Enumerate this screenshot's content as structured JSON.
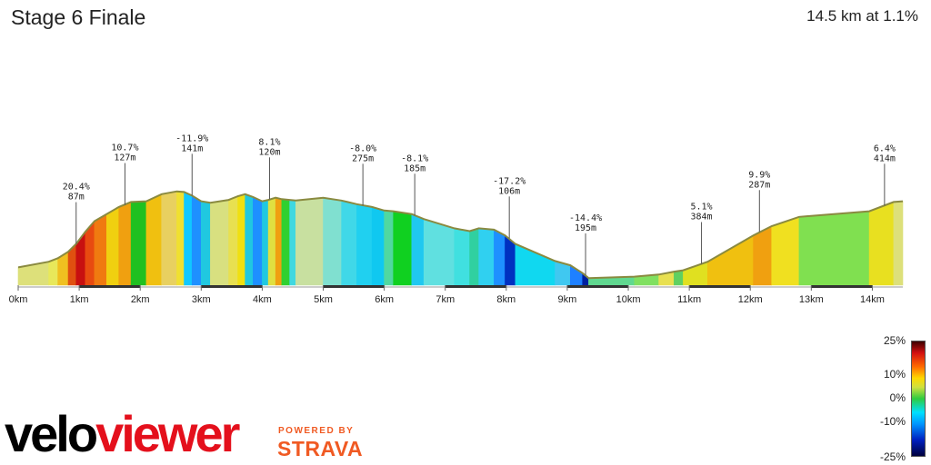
{
  "header": {
    "title": "Stage 6 Finale",
    "summary": "14.5 km at 1.1%"
  },
  "branding": {
    "logo_part1": "velo",
    "logo_part2": "viewer",
    "powered_by": "POWERED BY",
    "partner": "STRAVA"
  },
  "legend": {
    "labels": [
      "25%",
      "10%",
      "0%",
      "-10%",
      "-25%"
    ]
  },
  "chart_data": {
    "type": "area",
    "title": "Stage 6 Finale",
    "subtitle": "14.5 km at 1.1%",
    "x_unit": "km",
    "xlim": [
      0,
      14.5
    ],
    "x_ticks": [
      {
        "km": 0,
        "label": "0km"
      },
      {
        "km": 1,
        "label": "1km"
      },
      {
        "km": 2,
        "label": "2km"
      },
      {
        "km": 3,
        "label": "3km"
      },
      {
        "km": 4,
        "label": "4km"
      },
      {
        "km": 5,
        "label": "5km"
      },
      {
        "km": 6,
        "label": "6km"
      },
      {
        "km": 7,
        "label": "7km"
      },
      {
        "km": 8,
        "label": "8km"
      },
      {
        "km": 9,
        "label": "9km"
      },
      {
        "km": 10,
        "label": "10km"
      },
      {
        "km": 11,
        "label": "11km"
      },
      {
        "km": 12,
        "label": "12km"
      },
      {
        "km": 13,
        "label": "13km"
      },
      {
        "km": 14,
        "label": "14km"
      }
    ],
    "ylim": [
      80,
      430
    ],
    "profile": [
      {
        "km": 0.0,
        "elev": 105,
        "color": "#dde07a"
      },
      {
        "km": 0.5,
        "elev": 113,
        "color": "#e8e85a"
      },
      {
        "km": 0.65,
        "elev": 118,
        "color": "#f0c020"
      },
      {
        "km": 0.82,
        "elev": 127,
        "color": "#e05010"
      },
      {
        "km": 0.95,
        "elev": 138,
        "color": "#c81010"
      },
      {
        "km": 1.1,
        "elev": 155,
        "color": "#e84a10"
      },
      {
        "km": 1.25,
        "elev": 170,
        "color": "#f07a10"
      },
      {
        "km": 1.45,
        "elev": 180,
        "color": "#f0d010"
      },
      {
        "km": 1.65,
        "elev": 190,
        "color": "#f0a010"
      },
      {
        "km": 1.85,
        "elev": 197,
        "color": "#20c020"
      },
      {
        "km": 2.1,
        "elev": 198,
        "color": "#f0c010"
      },
      {
        "km": 2.35,
        "elev": 208,
        "color": "#e8d060"
      },
      {
        "km": 2.6,
        "elev": 212,
        "color": "#f0e030"
      },
      {
        "km": 2.72,
        "elev": 211,
        "color": "#10c8ff"
      },
      {
        "km": 2.85,
        "elev": 206,
        "color": "#1e90ff"
      },
      {
        "km": 3.0,
        "elev": 198,
        "color": "#20c8e0"
      },
      {
        "km": 3.15,
        "elev": 196,
        "color": "#d8e080"
      },
      {
        "km": 3.45,
        "elev": 200,
        "color": "#e8e050"
      },
      {
        "km": 3.6,
        "elev": 205,
        "color": "#f0e010"
      },
      {
        "km": 3.72,
        "elev": 208,
        "color": "#20c8e0"
      },
      {
        "km": 3.85,
        "elev": 204,
        "color": "#1e90ff"
      },
      {
        "km": 4.0,
        "elev": 198,
        "color": "#20c8e0"
      },
      {
        "km": 4.1,
        "elev": 200,
        "color": "#e0e040"
      },
      {
        "km": 4.22,
        "elev": 203,
        "color": "#f0a010"
      },
      {
        "km": 4.32,
        "elev": 201,
        "color": "#30d030"
      },
      {
        "km": 4.45,
        "elev": 200,
        "color": "#40d8e0"
      },
      {
        "km": 4.55,
        "elev": 199,
        "color": "#c8e0a0"
      },
      {
        "km": 5.0,
        "elev": 203,
        "color": "#80e0d0"
      },
      {
        "km": 5.3,
        "elev": 199,
        "color": "#40d8e8"
      },
      {
        "km": 5.55,
        "elev": 194,
        "color": "#20d0f0"
      },
      {
        "km": 5.8,
        "elev": 190,
        "color": "#10c8f0"
      },
      {
        "km": 6.0,
        "elev": 185,
        "color": "#50d8a0"
      },
      {
        "km": 6.15,
        "elev": 184,
        "color": "#10d020"
      },
      {
        "km": 6.45,
        "elev": 180,
        "color": "#20c8f0"
      },
      {
        "km": 6.65,
        "elev": 173,
        "color": "#60e0e0"
      },
      {
        "km": 7.15,
        "elev": 160,
        "color": "#40e0e0"
      },
      {
        "km": 7.4,
        "elev": 156,
        "color": "#30d0a0"
      },
      {
        "km": 7.55,
        "elev": 160,
        "color": "#30d0f0"
      },
      {
        "km": 7.8,
        "elev": 158,
        "color": "#1e90ff"
      },
      {
        "km": 7.98,
        "elev": 150,
        "color": "#0030c0"
      },
      {
        "km": 8.15,
        "elev": 138,
        "color": "#10d8f0"
      },
      {
        "km": 8.8,
        "elev": 114,
        "color": "#40c8f0"
      },
      {
        "km": 9.05,
        "elev": 108,
        "color": "#1e80ff"
      },
      {
        "km": 9.25,
        "elev": 97,
        "color": "#0020a0"
      },
      {
        "km": 9.35,
        "elev": 90,
        "color": "#60d890"
      },
      {
        "km": 10.1,
        "elev": 92,
        "color": "#80e060"
      },
      {
        "km": 10.5,
        "elev": 95,
        "color": "#e8e050"
      },
      {
        "km": 10.75,
        "elev": 99,
        "color": "#60d060"
      },
      {
        "km": 10.9,
        "elev": 101,
        "color": "#e0e020"
      },
      {
        "km": 11.3,
        "elev": 113,
        "color": "#f0c010"
      },
      {
        "km": 12.05,
        "elev": 150,
        "color": "#f0a010"
      },
      {
        "km": 12.35,
        "elev": 163,
        "color": "#f0e020"
      },
      {
        "km": 12.8,
        "elev": 176,
        "color": "#80e050"
      },
      {
        "km": 13.95,
        "elev": 184,
        "color": "#e8e020"
      },
      {
        "km": 14.35,
        "elev": 197,
        "color": "#dde07a"
      },
      {
        "km": 14.5,
        "elev": 198,
        "color": null
      }
    ],
    "annotations": [
      {
        "km": 0.95,
        "elev": 138,
        "grade": "20.4%",
        "alt": "87m"
      },
      {
        "km": 1.75,
        "elev": 193,
        "grade": "10.7%",
        "alt": "127m"
      },
      {
        "km": 2.85,
        "elev": 206,
        "grade": "-11.9%",
        "alt": "141m"
      },
      {
        "km": 4.12,
        "elev": 201,
        "grade": "8.1%",
        "alt": "120m"
      },
      {
        "km": 5.65,
        "elev": 192,
        "grade": "-8.0%",
        "alt": "275m"
      },
      {
        "km": 6.5,
        "elev": 178,
        "grade": "-8.1%",
        "alt": "185m"
      },
      {
        "km": 8.05,
        "elev": 146,
        "grade": "-17.2%",
        "alt": "106m"
      },
      {
        "km": 9.3,
        "elev": 94,
        "grade": "-14.4%",
        "alt": "195m"
      },
      {
        "km": 11.2,
        "elev": 110,
        "grade": "5.1%",
        "alt": "384m"
      },
      {
        "km": 12.15,
        "elev": 155,
        "grade": "9.9%",
        "alt": "287m"
      },
      {
        "km": 14.2,
        "elev": 192,
        "grade": "6.4%",
        "alt": "414m"
      }
    ]
  }
}
